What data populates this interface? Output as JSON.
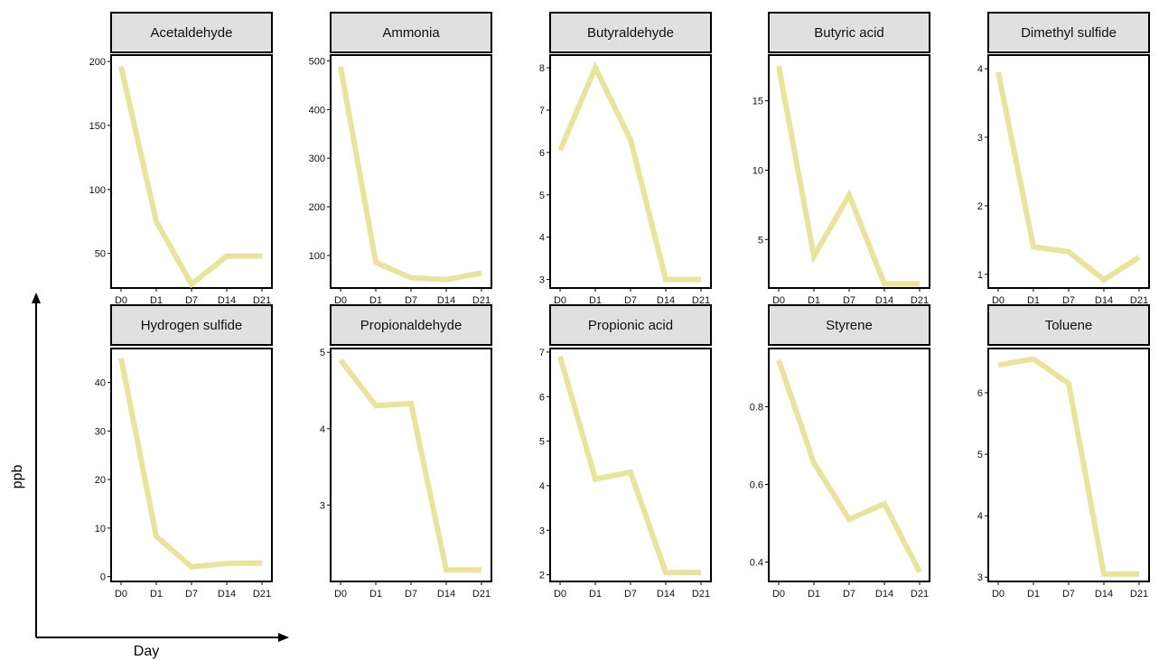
{
  "chart_data": {
    "type": "line",
    "layout": "facet-grid 2x5",
    "xlabel": "Day",
    "ylabel": "ppb",
    "categories": [
      "D0",
      "D1",
      "D7",
      "D14",
      "D21"
    ],
    "line_color": "#e8e59a",
    "strip_color": "#e0e0e0",
    "panels": [
      {
        "name": "Acetaldehyde",
        "values": [
          196,
          75,
          26,
          48,
          48
        ],
        "ylim": [
          23,
          205
        ],
        "yticks": [
          50,
          100,
          150,
          200
        ]
      },
      {
        "name": "Ammonia",
        "values": [
          488,
          86,
          54,
          50,
          64
        ],
        "ylim": [
          33,
          512
        ],
        "yticks": [
          100,
          200,
          300,
          400,
          500
        ]
      },
      {
        "name": "Butyraldehyde",
        "values": [
          6.05,
          8.0,
          6.3,
          3.0,
          3.0
        ],
        "ylim": [
          2.8,
          8.3
        ],
        "yticks": [
          3,
          4,
          5,
          6,
          7,
          8
        ]
      },
      {
        "name": "Butyric acid",
        "values": [
          17.5,
          3.8,
          8.2,
          1.8,
          1.8
        ],
        "ylim": [
          1.5,
          18.3
        ],
        "yticks": [
          5,
          10,
          15
        ]
      },
      {
        "name": "Dimethyl sulfide",
        "values": [
          3.95,
          1.4,
          1.33,
          0.92,
          1.25
        ],
        "ylim": [
          0.8,
          4.2
        ],
        "yticks": [
          1,
          2,
          3,
          4
        ]
      },
      {
        "name": "Hydrogen sulfide",
        "values": [
          45,
          8.3,
          2.0,
          2.7,
          2.8
        ],
        "ylim": [
          -1,
          47
        ],
        "yticks": [
          0,
          10,
          20,
          30,
          40
        ]
      },
      {
        "name": "Propionaldehyde",
        "values": [
          4.9,
          4.3,
          4.33,
          2.15,
          2.15
        ],
        "ylim": [
          2.0,
          5.05
        ],
        "yticks": [
          3,
          4,
          5
        ]
      },
      {
        "name": "Propionic acid",
        "values": [
          6.9,
          4.15,
          4.3,
          2.05,
          2.05
        ],
        "ylim": [
          1.85,
          7.08
        ],
        "yticks": [
          2,
          3,
          4,
          5,
          6,
          7
        ]
      },
      {
        "name": "Styrene",
        "values": [
          0.92,
          0.655,
          0.51,
          0.55,
          0.375
        ],
        "ylim": [
          0.35,
          0.95
        ],
        "yticks": [
          0.4,
          0.6,
          0.8
        ]
      },
      {
        "name": "Toluene",
        "values": [
          6.45,
          6.55,
          6.15,
          3.05,
          3.05
        ],
        "ylim": [
          2.93,
          6.72
        ],
        "yticks": [
          3,
          4,
          5,
          6
        ]
      }
    ]
  }
}
